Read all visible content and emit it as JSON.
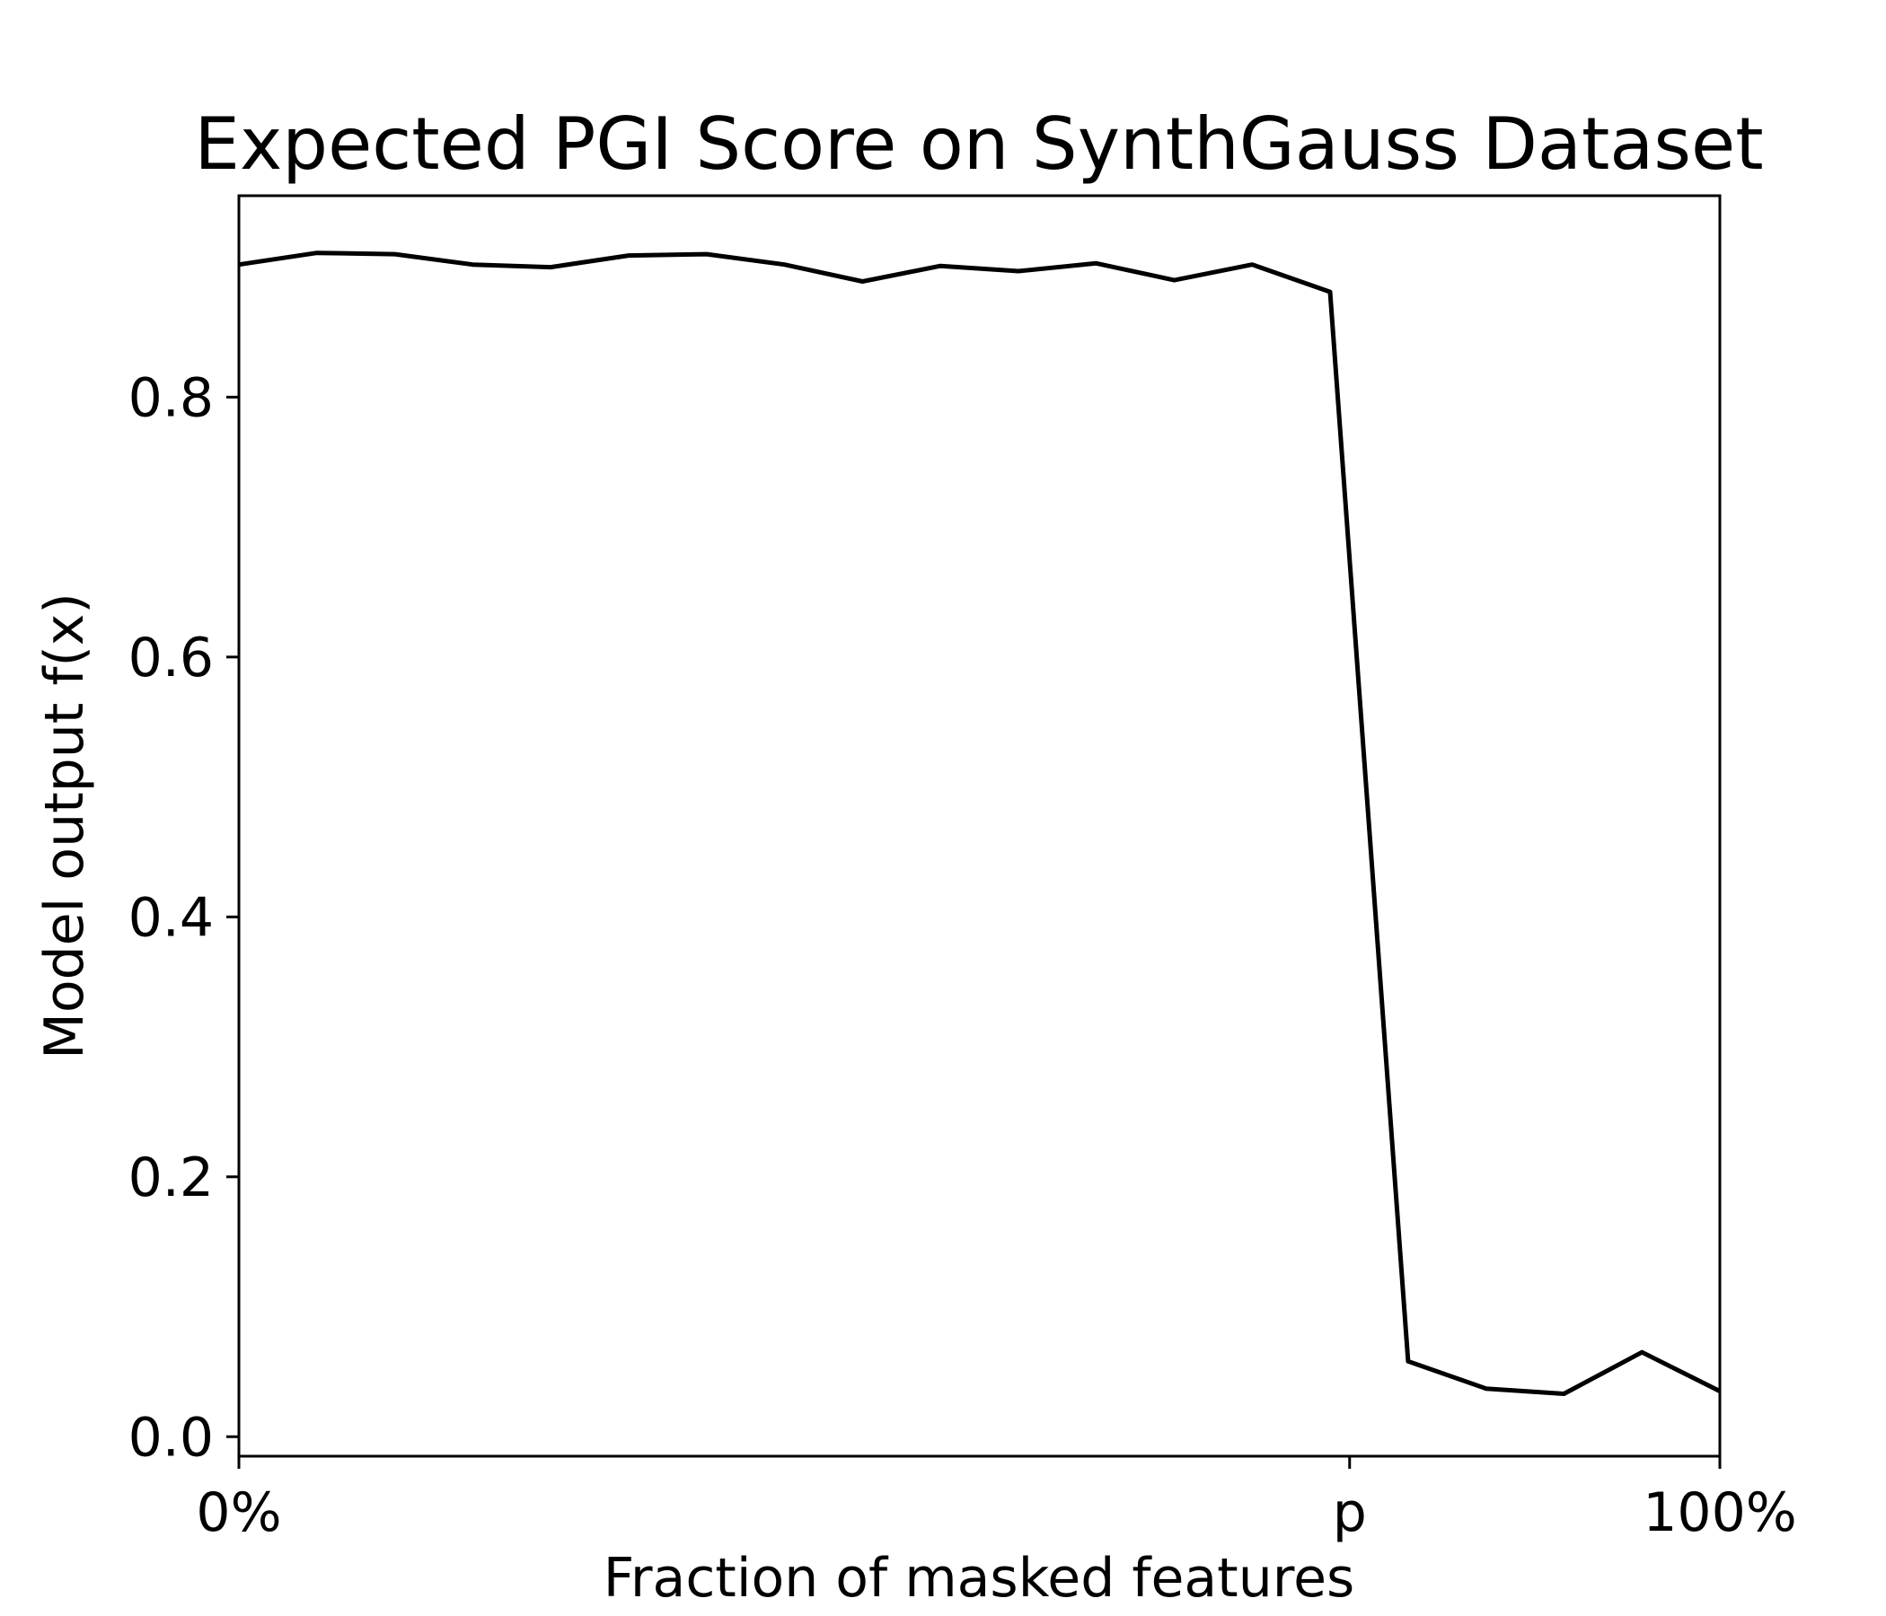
{
  "chart_data": {
    "type": "line",
    "title": "Expected PGI Score on SynthGauss Dataset",
    "xlabel": "Fraction of masked features",
    "ylabel": "Model output f(x)",
    "xlim": [
      0,
      1
    ],
    "ylim": [
      -0.015,
      0.955
    ],
    "x_ticks": [
      {
        "value": 0,
        "label": "0%"
      },
      {
        "value": 0.75,
        "label": "p"
      },
      {
        "value": 1,
        "label": "100%"
      }
    ],
    "y_ticks": [
      {
        "value": 0.0,
        "label": "0.0"
      },
      {
        "value": 0.2,
        "label": "0.2"
      },
      {
        "value": 0.4,
        "label": "0.4"
      },
      {
        "value": 0.6,
        "label": "0.6"
      },
      {
        "value": 0.8,
        "label": "0.8"
      }
    ],
    "grid": false,
    "series": [
      {
        "color": "#000000",
        "x": [
          0.0,
          0.0526,
          0.1053,
          0.1579,
          0.2105,
          0.2632,
          0.3158,
          0.3684,
          0.4211,
          0.4737,
          0.5263,
          0.5789,
          0.6316,
          0.6842,
          0.7368,
          0.7895,
          0.8421,
          0.8947,
          0.9474,
          1.0
        ],
        "y": [
          0.902,
          0.911,
          0.91,
          0.902,
          0.9,
          0.909,
          0.91,
          0.902,
          0.889,
          0.901,
          0.897,
          0.903,
          0.89,
          0.902,
          0.881,
          0.058,
          0.037,
          0.033,
          0.065,
          0.035
        ]
      }
    ]
  }
}
